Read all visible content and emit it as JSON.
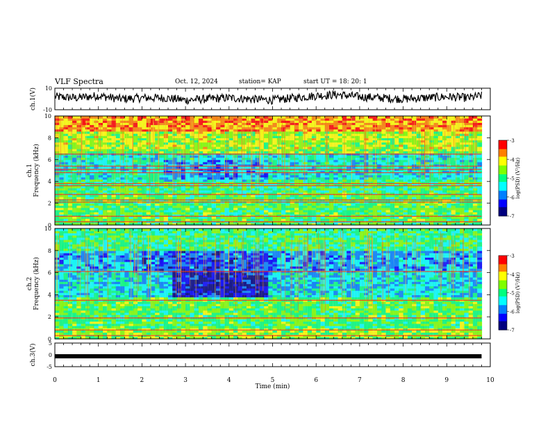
{
  "header": {
    "title": "VLF Spectra",
    "date": "Oct. 12, 2024",
    "station": "station= KAP",
    "start_ut": "start UT =  18: 20: 1"
  },
  "colorbar": {
    "label": "log(PSD) (V²/Hz)",
    "ticks": [
      -3,
      -4,
      -5,
      -6,
      -7
    ],
    "colormap": [
      "#00007f",
      "#0000ff",
      "#007fff",
      "#00ffff",
      "#00ff7f",
      "#7fff00",
      "#ffff00",
      "#ff7f00",
      "#ff0000",
      "#ffc0c0"
    ]
  },
  "chart_data": [
    {
      "type": "line",
      "id": "ch1_waveform",
      "ylabel": "ch.1(V)",
      "ylim": [
        -10,
        10
      ],
      "yticks": [
        "10",
        "-10"
      ],
      "xlim": [
        0,
        10
      ],
      "description_values_min": [
        0.0,
        0.5,
        1.0,
        1.5,
        2.0,
        2.5,
        3.0,
        3.5,
        4.0,
        4.5,
        5.0,
        5.5,
        6.0,
        6.5,
        7.0,
        7.5,
        8.0,
        8.5,
        9.0,
        9.5,
        9.8
      ],
      "values": [
        2,
        1,
        3,
        0,
        1,
        1,
        -1,
        0,
        1,
        0,
        -1,
        1,
        3,
        4,
        2,
        1,
        0,
        1,
        2,
        1,
        3
      ]
    },
    {
      "type": "heatmap",
      "id": "ch1_spectrogram",
      "ylabel": "ch.1\nFrequency (kHz)",
      "ylim": [
        0,
        10
      ],
      "yticks": [
        "0",
        "2",
        "4",
        "6",
        "8",
        "10"
      ],
      "xlim": [
        0,
        9.8
      ],
      "zlabel": "log(PSD) (V²/Hz)",
      "zlim": [
        -7,
        -3
      ],
      "band_lines_khz": [
        0.3,
        0.8,
        2.1,
        2.3,
        2.8,
        3.6,
        3.8,
        4.8,
        5.1,
        5.4,
        6.5
      ]
    },
    {
      "type": "heatmap",
      "id": "ch2_spectrogram",
      "ylabel": "ch.2\nFrequency (kHz)",
      "ylim": [
        0,
        10
      ],
      "yticks": [
        "0",
        "2",
        "4",
        "6",
        "8",
        "10"
      ],
      "xlim": [
        0,
        9.8
      ],
      "zlabel": "log(PSD) (V²/Hz)",
      "zlim": [
        -7,
        -3
      ],
      "band_lines_khz": [
        0.3,
        0.8,
        1.9,
        3.5,
        6.1
      ]
    },
    {
      "type": "line",
      "id": "ch3_waveform",
      "ylabel": "ch.3(V)",
      "ylim": [
        -5,
        5
      ],
      "yticks": [
        "5",
        "0",
        "-5"
      ],
      "xlim": [
        0,
        10
      ],
      "value_constant": -0.6
    }
  ],
  "xaxis": {
    "label": "Time (min)",
    "ticks": [
      "0",
      "1",
      "2",
      "3",
      "4",
      "5",
      "6",
      "7",
      "8",
      "9",
      "10"
    ]
  }
}
